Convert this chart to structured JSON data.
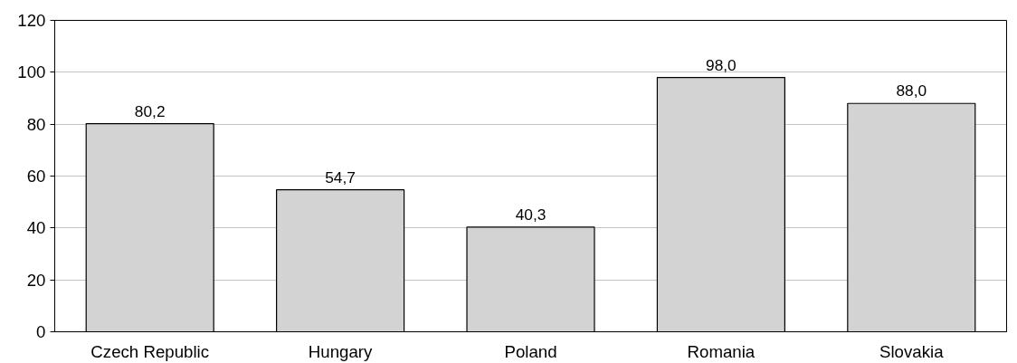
{
  "chart_data": {
    "type": "bar",
    "categories": [
      "Czech Republic",
      "Hungary",
      "Poland",
      "Romania",
      "Slovakia"
    ],
    "values": [
      80.2,
      54.7,
      40.3,
      98.0,
      88.0
    ],
    "value_labels": [
      "80,2",
      "54,7",
      "40,3",
      "98,0",
      "88,0"
    ],
    "color": "#d3d3d3",
    "ylim": [
      0,
      120
    ],
    "yticks": [
      0,
      20,
      40,
      60,
      80,
      100,
      120
    ],
    "grid": "y"
  }
}
